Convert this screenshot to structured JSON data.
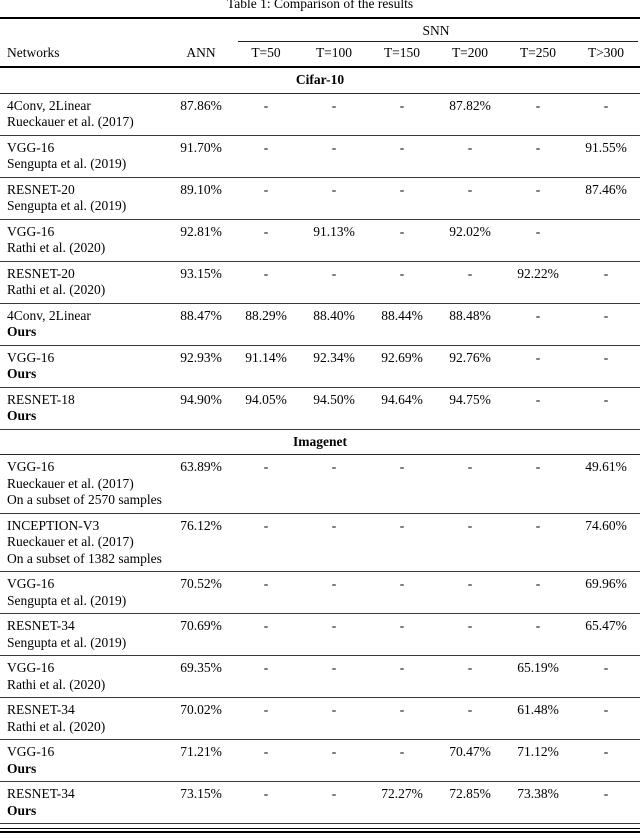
{
  "caption": "Table 1: Comparison of the results",
  "header": {
    "networks": "Networks",
    "ann": "ANN",
    "snn_group": "SNN",
    "time_cols": [
      "T=50",
      "T=100",
      "T=150",
      "T=200",
      "T=250",
      "T>300"
    ]
  },
  "sections": [
    {
      "title": "Cifar-10",
      "rows": [
        {
          "network_lines": [
            {
              "text": "4Conv, 2Linear",
              "bold": false
            },
            {
              "text": "Rueckauer et al. (2017)",
              "bold": false
            }
          ],
          "ann": "87.86%",
          "snn": [
            "-",
            "-",
            "-",
            "87.82%",
            "-",
            "-"
          ]
        },
        {
          "network_lines": [
            {
              "text": "VGG-16",
              "bold": false
            },
            {
              "text": "Sengupta et al. (2019)",
              "bold": false
            }
          ],
          "ann": "91.70%",
          "snn": [
            "-",
            "-",
            "-",
            "-",
            "-",
            "91.55%"
          ]
        },
        {
          "network_lines": [
            {
              "text": "RESNET-20",
              "bold": false
            },
            {
              "text": "Sengupta et al. (2019)",
              "bold": false
            }
          ],
          "ann": "89.10%",
          "snn": [
            "-",
            "-",
            "-",
            "-",
            "-",
            "87.46%"
          ]
        },
        {
          "network_lines": [
            {
              "text": "VGG-16",
              "bold": false
            },
            {
              "text": "Rathi et al. (2020)",
              "bold": false
            }
          ],
          "ann": "92.81%",
          "snn": [
            "-",
            "91.13%",
            "-",
            "92.02%",
            "-",
            ""
          ]
        },
        {
          "network_lines": [
            {
              "text": "RESNET-20",
              "bold": false
            },
            {
              "text": "Rathi et al. (2020)",
              "bold": false
            }
          ],
          "ann": "93.15%",
          "snn": [
            "-",
            "-",
            "-",
            "-",
            "92.22%",
            "-"
          ]
        },
        {
          "network_lines": [
            {
              "text": "4Conv, 2Linear",
              "bold": false
            },
            {
              "text": "Ours",
              "bold": true
            }
          ],
          "ann": "88.47%",
          "snn": [
            "88.29%",
            "88.40%",
            "88.44%",
            "88.48%",
            "-",
            "-"
          ]
        },
        {
          "network_lines": [
            {
              "text": "VGG-16",
              "bold": false
            },
            {
              "text": "Ours",
              "bold": true
            }
          ],
          "ann": "92.93%",
          "snn": [
            "91.14%",
            "92.34%",
            "92.69%",
            "92.76%",
            "-",
            "-"
          ]
        },
        {
          "network_lines": [
            {
              "text": "RESNET-18",
              "bold": false
            },
            {
              "text": "Ours",
              "bold": true
            }
          ],
          "ann": "94.90%",
          "snn": [
            "94.05%",
            "94.50%",
            "94.64%",
            "94.75%",
            "-",
            "-"
          ]
        }
      ]
    },
    {
      "title": "Imagenet",
      "rows": [
        {
          "network_lines": [
            {
              "text": "VGG-16",
              "bold": false
            },
            {
              "text": "Rueckauer et al. (2017)",
              "bold": false
            },
            {
              "text": "On a subset of 2570 samples",
              "bold": false
            }
          ],
          "ann": "63.89%",
          "snn": [
            "-",
            "-",
            "-",
            "-",
            "-",
            "49.61%"
          ]
        },
        {
          "network_lines": [
            {
              "text": "INCEPTION-V3",
              "bold": false
            },
            {
              "text": "Rueckauer et al. (2017)",
              "bold": false
            },
            {
              "text": "On a subset of 1382 samples",
              "bold": false
            }
          ],
          "ann": "76.12%",
          "snn": [
            "-",
            "-",
            "-",
            "-",
            "-",
            "74.60%"
          ]
        },
        {
          "network_lines": [
            {
              "text": "VGG-16",
              "bold": false
            },
            {
              "text": "Sengupta et al. (2019)",
              "bold": false
            }
          ],
          "ann": "70.52%",
          "snn": [
            "-",
            "-",
            "-",
            "-",
            "-",
            "69.96%"
          ]
        },
        {
          "network_lines": [
            {
              "text": "RESNET-34",
              "bold": false
            },
            {
              "text": "Sengupta et al. (2019)",
              "bold": false
            }
          ],
          "ann": "70.69%",
          "snn": [
            "-",
            "-",
            "-",
            "-",
            "-",
            "65.47%"
          ]
        },
        {
          "network_lines": [
            {
              "text": "VGG-16",
              "bold": false
            },
            {
              "text": "Rathi et al. (2020)",
              "bold": false
            }
          ],
          "ann": "69.35%",
          "snn": [
            "-",
            "-",
            "-",
            "-",
            "65.19%",
            "-"
          ]
        },
        {
          "network_lines": [
            {
              "text": "RESNET-34",
              "bold": false
            },
            {
              "text": "Rathi et al. (2020)",
              "bold": false
            }
          ],
          "ann": "70.02%",
          "snn": [
            "-",
            "-",
            "-",
            "-",
            "61.48%",
            "-"
          ]
        },
        {
          "network_lines": [
            {
              "text": "VGG-16",
              "bold": false
            },
            {
              "text": "Ours",
              "bold": true
            }
          ],
          "ann": "71.21%",
          "snn": [
            "-",
            "-",
            "-",
            "70.47%",
            "71.12%",
            "-"
          ]
        },
        {
          "network_lines": [
            {
              "text": "RESNET-34",
              "bold": false
            },
            {
              "text": "Ours",
              "bold": true
            }
          ],
          "ann": "73.15%",
          "snn": [
            "-",
            "-",
            "72.27%",
            "72.85%",
            "73.38%",
            "-"
          ]
        }
      ]
    }
  ]
}
